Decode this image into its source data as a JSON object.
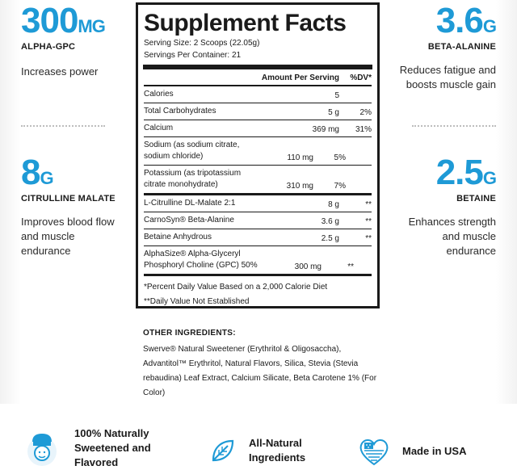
{
  "left": [
    {
      "value": "300",
      "unit": "MG",
      "name": "ALPHA-GPC",
      "desc": "Increases power"
    },
    {
      "value": "8",
      "unit": "G",
      "name": "CITRULLINE MALATE",
      "desc": "Improves blood flow and muscle endurance"
    }
  ],
  "right": [
    {
      "value": "3.6",
      "unit": "G",
      "name": "BETA-ALANINE",
      "desc": "Reduces fatigue and boosts muscle gain"
    },
    {
      "value": "2.5",
      "unit": "G",
      "name": "BETAINE",
      "desc": "Enhances strength and muscle endurance"
    }
  ],
  "facts": {
    "title": "Supplement Facts",
    "serving_size": "Serving Size: 2 Scoops (22.05g)",
    "servings_per": "Servings Per Container: 21",
    "header_amount": "Amount Per Serving",
    "header_dv": "%DV*",
    "rows": [
      {
        "name": "Calories",
        "amount": "5",
        "dv": ""
      },
      {
        "name": "Total Carbohydrates",
        "amount": "5 g",
        "dv": "2%"
      },
      {
        "name": "Calcium",
        "amount": "369 mg",
        "dv": "31%"
      },
      {
        "name": "Sodium (as sodium citrate, sodium chloride)",
        "amount": "110 mg",
        "dv": "5%"
      },
      {
        "name": "Potassium (as tripotassium citrate monohydrate)",
        "amount": "310 mg",
        "dv": "7%"
      },
      {
        "name": "L-Citrulline DL-Malate 2:1",
        "amount": "8 g",
        "dv": "**"
      },
      {
        "name": "CarnoSyn® Beta-Alanine",
        "amount": "3.6 g",
        "dv": "**"
      },
      {
        "name": "Betaine Anhydrous",
        "amount": "2.5 g",
        "dv": "**"
      },
      {
        "name": "AlphaSize® Alpha-Glyceryl Phosphoryl Choline (GPC) 50%",
        "amount": "300 mg",
        "dv": "**"
      }
    ],
    "footnote1": "*Percent Daily Value Based on a 2,000 Calorie Diet",
    "footnote2": "**Daily Value Not Established"
  },
  "other": {
    "title": "OTHER INGREDIENTS:",
    "text": "Swerve® Natural Sweetener (Erythritol & Oligosaccha), Advantitol™ Erythritol, Natural Flavors, Silica, Stevia (Stevia rebaudina) Leaf Extract, Calcium Silicate, Beta Carotene 1% (For Color)"
  },
  "badges": [
    {
      "icon": "chef-icon",
      "label": "100% Naturally Sweetened and Flavored"
    },
    {
      "icon": "leaf-icon",
      "label": "All-Natural Ingredients"
    },
    {
      "icon": "us-flag-heart-icon",
      "label": "Made in USA"
    }
  ],
  "colors": {
    "accent": "#1e9ad6",
    "text": "#1a1a1a"
  }
}
